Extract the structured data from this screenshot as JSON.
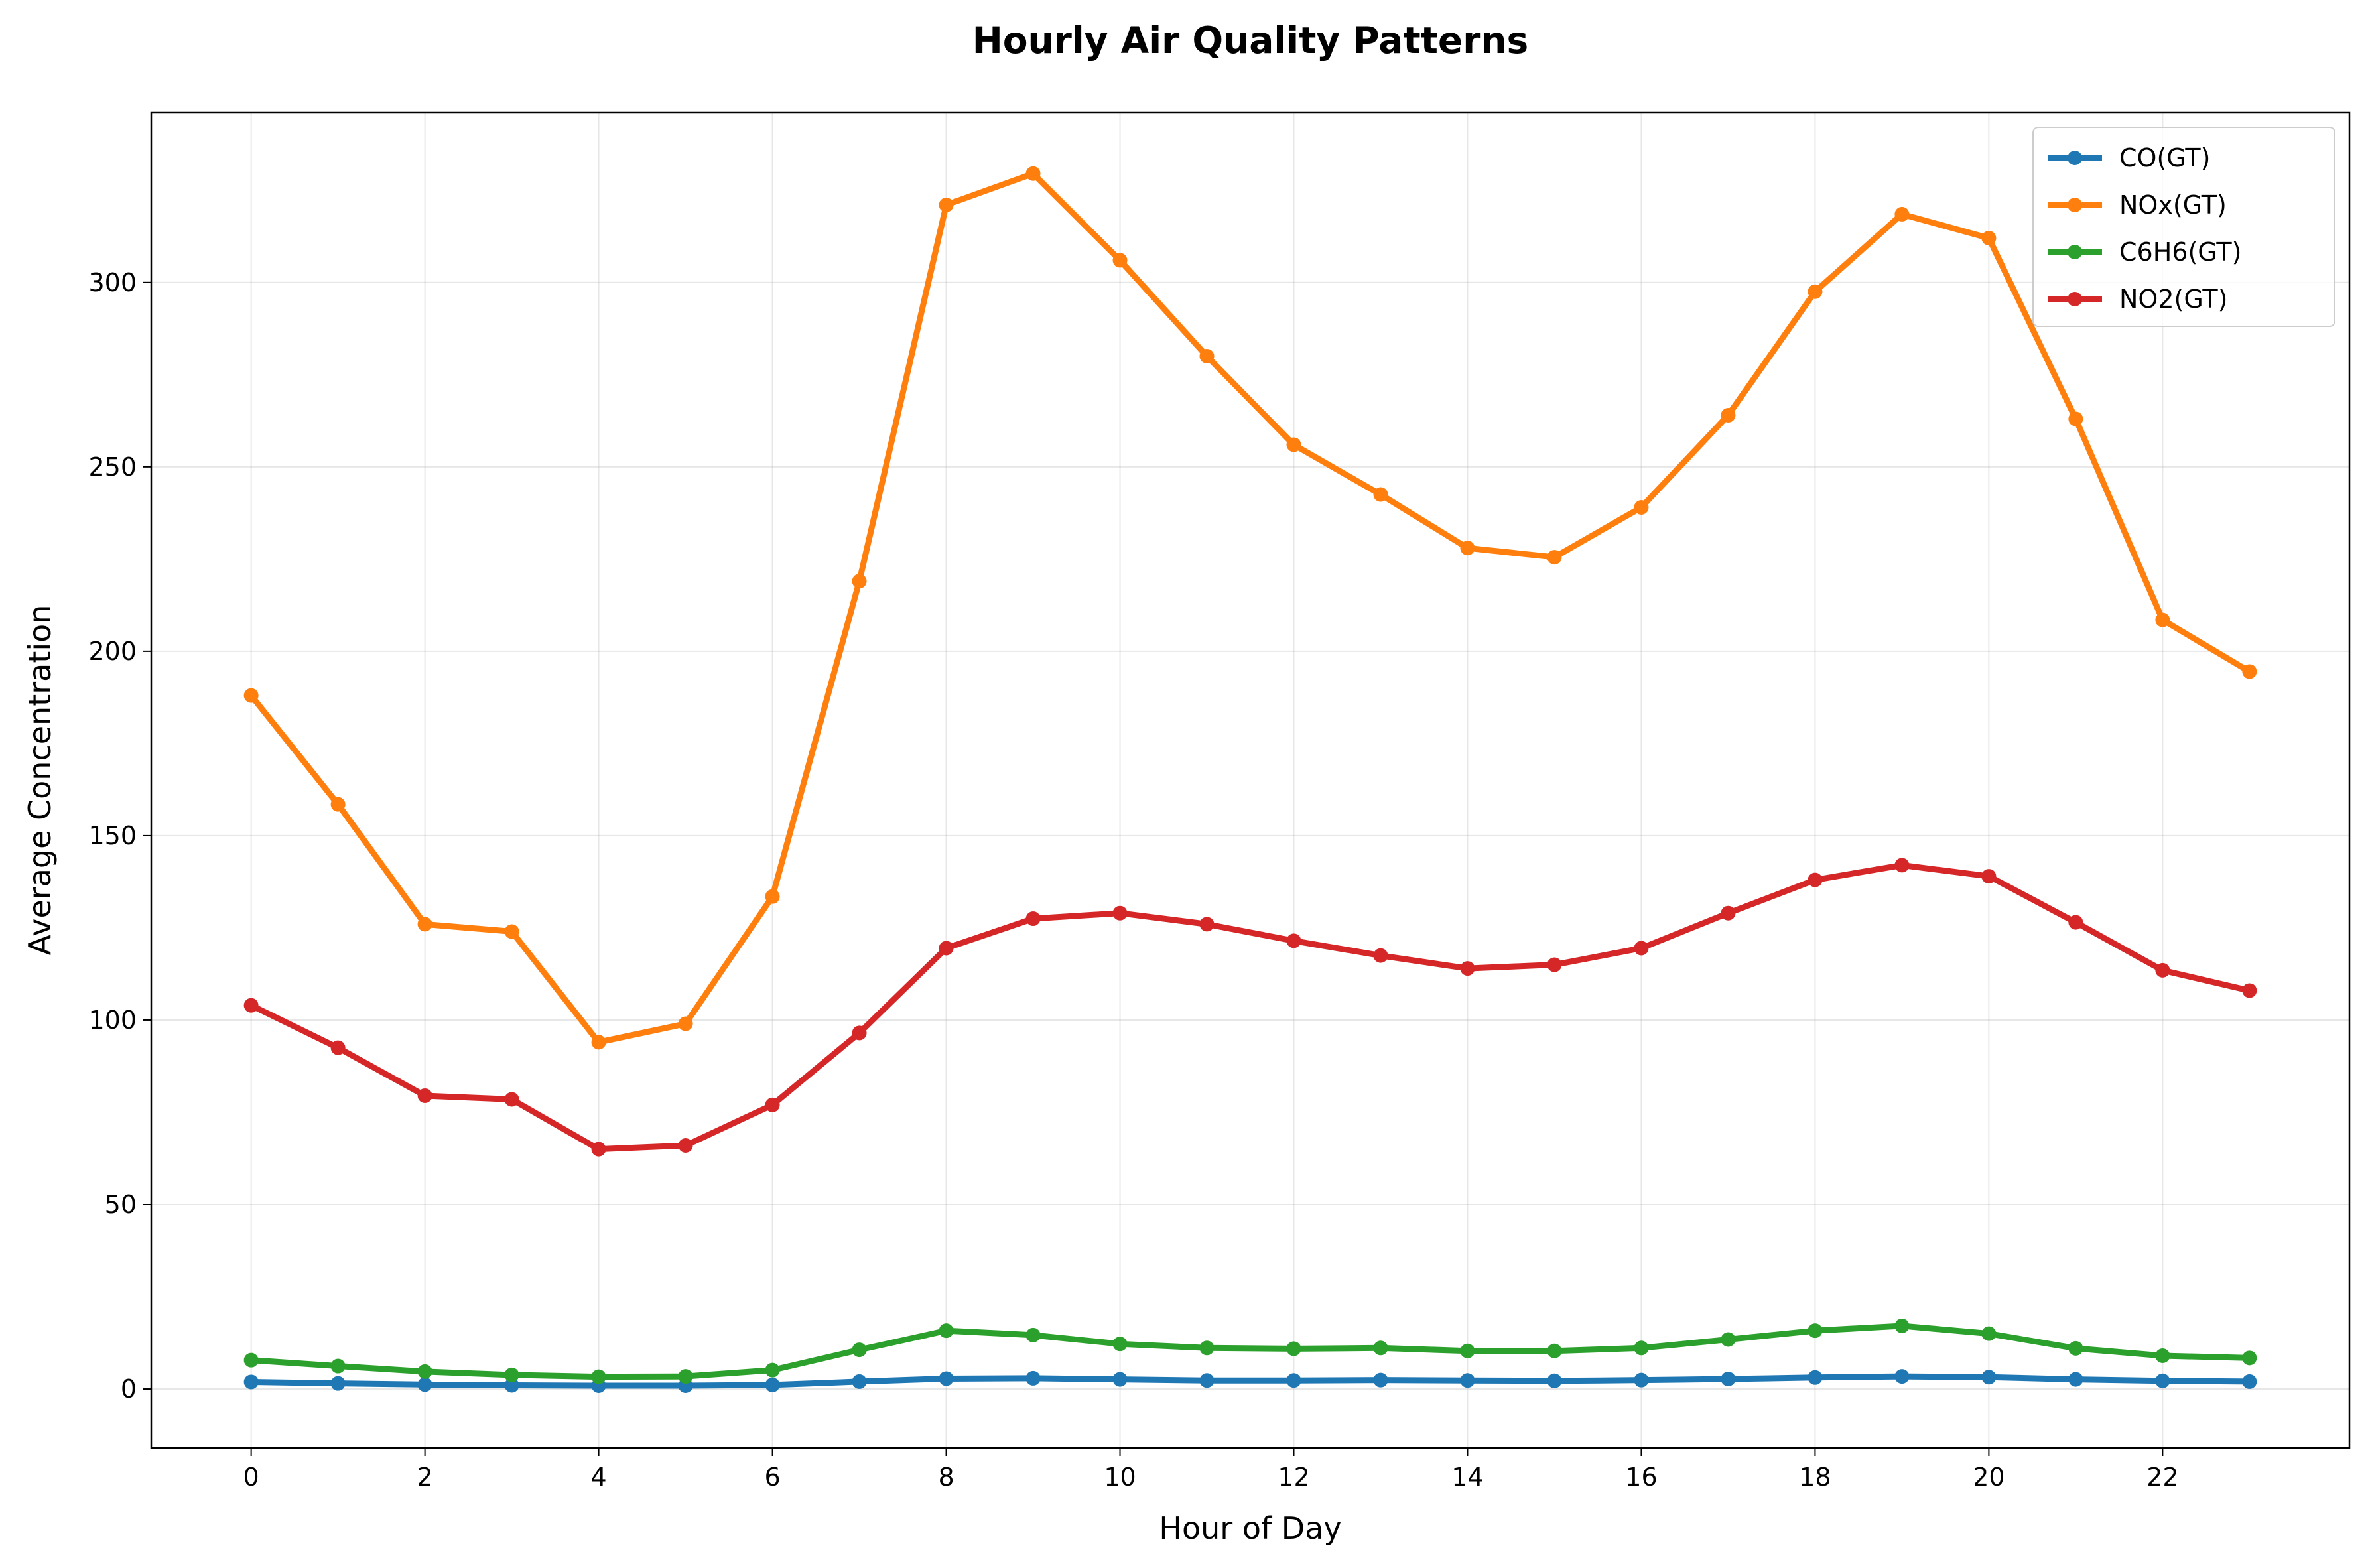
{
  "chart_data": {
    "type": "line",
    "title": "Hourly Air Quality Patterns",
    "xlabel": "Hour of Day",
    "ylabel": "Average Concentration",
    "x": [
      0,
      1,
      2,
      3,
      4,
      5,
      6,
      7,
      8,
      9,
      10,
      11,
      12,
      13,
      14,
      15,
      16,
      17,
      18,
      19,
      20,
      21,
      22,
      23
    ],
    "xticks": [
      0,
      2,
      4,
      6,
      8,
      10,
      12,
      14,
      16,
      18,
      20,
      22
    ],
    "yticks": [
      0,
      50,
      100,
      150,
      200,
      250,
      300
    ],
    "xlim": [
      -1.15,
      24.15
    ],
    "ylim": [
      -16,
      346
    ],
    "grid": true,
    "legend_position": "top-right",
    "series": [
      {
        "name": "CO(GT)",
        "color": "#1f77b4",
        "values": [
          1.9,
          1.5,
          1.2,
          1.0,
          0.9,
          0.9,
          1.1,
          2.0,
          2.8,
          2.9,
          2.6,
          2.3,
          2.3,
          2.4,
          2.3,
          2.2,
          2.4,
          2.7,
          3.1,
          3.4,
          3.2,
          2.6,
          2.2,
          2.0
        ]
      },
      {
        "name": "NOx(GT)",
        "color": "#ff7f0e",
        "values": [
          188,
          158.5,
          126,
          124,
          94,
          99,
          133.5,
          219,
          321,
          329.5,
          306,
          280,
          256,
          242.5,
          228,
          225.5,
          239,
          264,
          297.5,
          318.5,
          312,
          263,
          208.5,
          194.5
        ]
      },
      {
        "name": "C6H6(GT)",
        "color": "#2ca02c",
        "values": [
          7.8,
          6.2,
          4.7,
          3.8,
          3.3,
          3.4,
          5.1,
          10.6,
          15.8,
          14.6,
          12.2,
          11.1,
          10.9,
          11.1,
          10.3,
          10.3,
          11.1,
          13.4,
          15.8,
          17.1,
          15,
          11,
          9,
          8.4
        ]
      },
      {
        "name": "NO2(GT)",
        "color": "#d62728",
        "values": [
          104,
          92.5,
          79.5,
          78.5,
          65,
          66,
          77,
          96.5,
          119.5,
          127.5,
          129,
          126,
          121.5,
          117.5,
          114,
          115,
          119.5,
          129,
          138,
          142,
          139,
          126.5,
          113.5,
          108
        ]
      }
    ]
  }
}
